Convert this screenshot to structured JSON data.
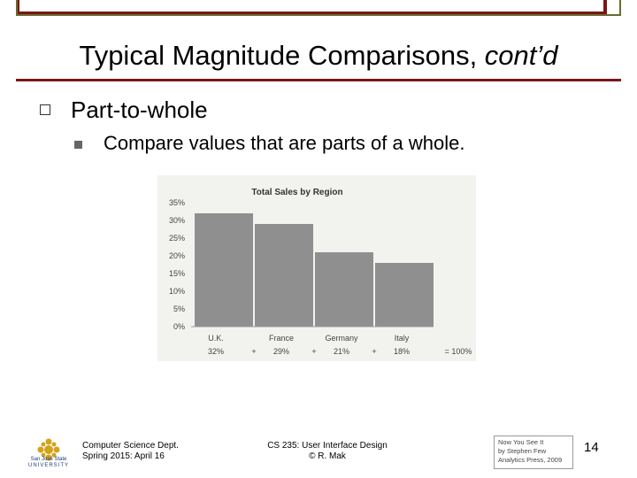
{
  "slide": {
    "title_main": "Typical Magnitude Comparisons, ",
    "title_italic": "cont’d",
    "bullet1": "Part-to-whole",
    "bullet2": "Compare values that are parts of a whole."
  },
  "chart_data": {
    "type": "bar",
    "title": "Total Sales by Region",
    "categories": [
      "U.K.",
      "France",
      "Germany",
      "Italy"
    ],
    "values": [
      32,
      29,
      21,
      18
    ],
    "value_labels": [
      "32%",
      "29%",
      "21%",
      "18%"
    ],
    "operators": [
      "+",
      "+",
      "+"
    ],
    "sum_label": "= 100%",
    "yticks": [
      "0%",
      "5%",
      "10%",
      "15%",
      "20%",
      "25%",
      "30%",
      "35%"
    ],
    "ylim": [
      0,
      35
    ],
    "xlabel": "",
    "ylabel": "",
    "bar_color": "#8f8f8f",
    "grid": false
  },
  "footer": {
    "left_line1": "Computer Science Dept.",
    "left_line2": "Spring 2015: April 16",
    "mid_line1": "CS 235: User Interface Design",
    "mid_line2": "© R. Mak",
    "cite_line1": "Now You See It",
    "cite_line2": "by Stephen Few",
    "cite_line3": "Analytics Press, 2009",
    "page_number": "14",
    "logo_line1": "San José State",
    "logo_line2": "UNIVERSITY"
  },
  "colors": {
    "accent": "#7a1616",
    "olive": "#6b6b2e"
  }
}
